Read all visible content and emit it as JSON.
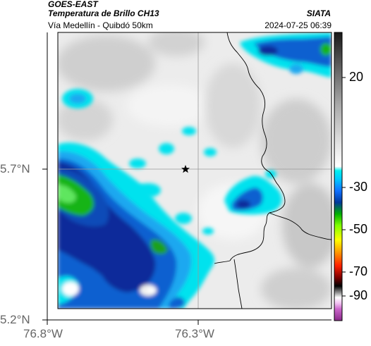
{
  "header": {
    "satellite": "GOES-EAST",
    "product": "Temperatura de Brillo CH13",
    "region": "Vía Medellín - Quibdó 50km",
    "organization": "SIATA",
    "timestamp": "2024-07-25 06:39"
  },
  "axes": {
    "latitude_ticks": [
      "5.7°N",
      "5.2°N"
    ],
    "longitude_ticks": [
      "76.8°W",
      "76.3°W"
    ]
  },
  "map": {
    "marker_icon": "star-icon",
    "colors": {
      "warm_gray": "#e8e8e8",
      "cyan": "#00e5ee",
      "blue": "#0a50c8",
      "dark_blue": "#0a2a9a",
      "green": "#1ec81e",
      "border": "#000000"
    }
  },
  "colorbar": {
    "ticks": [
      "20",
      "-30",
      "-50",
      "-70",
      "-90"
    ]
  }
}
